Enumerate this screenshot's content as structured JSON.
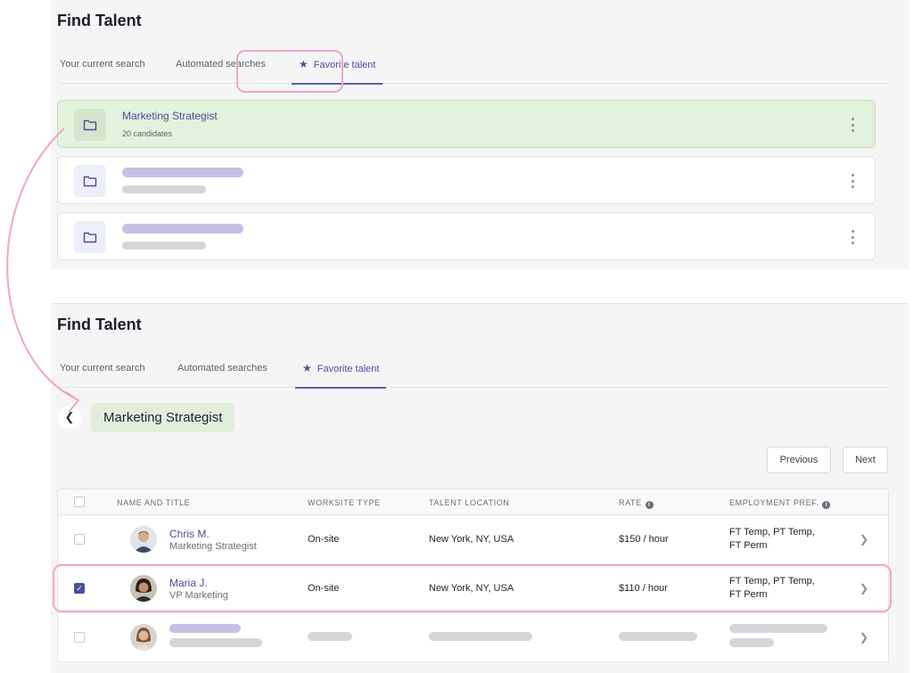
{
  "top": {
    "page_title": "Find Talent",
    "tabs": [
      {
        "label": "Your current search"
      },
      {
        "label": "Automated searches"
      },
      {
        "label": "Favorite talent"
      }
    ],
    "folders": [
      {
        "name": "Marketing Strategist",
        "count": "20 candidates"
      }
    ]
  },
  "bottom": {
    "page_title": "Find Talent",
    "tabs": [
      {
        "label": "Your current search"
      },
      {
        "label": "Automated searches"
      },
      {
        "label": "Favorite talent"
      }
    ],
    "folder_chip": "Marketing Strategist",
    "pager": {
      "previous": "Previous",
      "next": "Next"
    },
    "table": {
      "headers": {
        "name": "NAME AND TITLE",
        "worksite": "WORKSITE TYPE",
        "location": "TALENT LOCATION",
        "rate": "RATE",
        "employment": "EMPLOYMENT PREF."
      },
      "rows": [
        {
          "name": "Chris M.",
          "title": "Marketing Strategist",
          "worksite": "On-site",
          "location": "New York, NY, USA",
          "rate": "$150 / hour",
          "employment_1": "FT Temp, PT Temp,",
          "employment_2": "FT Perm",
          "checked": false
        },
        {
          "name": "Maria J.",
          "title": "VP Marketing",
          "worksite": "On-site",
          "location": "New York, NY, USA",
          "rate": "$110 / hour",
          "employment_1": "FT Temp, PT Temp,",
          "employment_2": "FT Perm",
          "checked": true
        }
      ]
    }
  },
  "colors": {
    "accent": "#4b4f9d",
    "highlight_pink": "#f0a6c8",
    "selected_green": "#e4f1dc"
  },
  "icons": [
    "folder-icon",
    "star-icon",
    "kebab-menu-icon",
    "back-chevron-icon",
    "chevron-right-icon",
    "info-icon",
    "check-icon"
  ]
}
